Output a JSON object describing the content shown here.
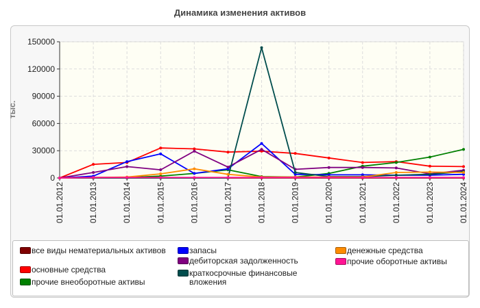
{
  "chart_data": {
    "type": "line",
    "title": "Динамика изменения активов",
    "ylabel": "тыс.",
    "xlabel": "",
    "ylim": [
      0,
      150000
    ],
    "yticks": [
      0,
      30000,
      60000,
      90000,
      120000,
      150000
    ],
    "grid": true,
    "legend_position": "bottom",
    "categories": [
      "01.01.2012",
      "01.01.2013",
      "01.01.2014",
      "01.01.2015",
      "01.01.2016",
      "01.01.2017",
      "01.01.2018",
      "01.01.2019",
      "01.01.2020",
      "01.01.2021",
      "01.01.2022",
      "01.01.2023",
      "01.01.2024"
    ],
    "series": [
      {
        "name": "все виды нематериальных активов",
        "color": "#800000",
        "values": [
          0,
          0,
          0,
          0,
          0,
          0,
          0,
          0,
          0,
          0,
          0,
          0,
          0
        ]
      },
      {
        "name": "основные средства",
        "color": "#ff0000",
        "values": [
          0,
          15000,
          17000,
          33000,
          32000,
          28500,
          29500,
          27000,
          22000,
          17000,
          18000,
          13000,
          12500
        ]
      },
      {
        "name": "прочие внеоборотные активы",
        "color": "#008000",
        "values": [
          0,
          500,
          500,
          2000,
          5000,
          9000,
          1500,
          1000,
          5000,
          13000,
          17000,
          23000,
          31500
        ]
      },
      {
        "name": "запасы",
        "color": "#0000ff",
        "values": [
          0,
          2000,
          18000,
          26500,
          5000,
          10000,
          38000,
          4000,
          3500,
          3500,
          3000,
          3000,
          4000
        ]
      },
      {
        "name": "дебиторская задолженность",
        "color": "#800080",
        "values": [
          0,
          6000,
          12500,
          9000,
          29500,
          12000,
          31500,
          9500,
          11500,
          11500,
          11000,
          4500,
          8500
        ]
      },
      {
        "name": "краткосрочные финансовые вложения",
        "color": "#004d4d",
        "values": [
          0,
          0,
          0,
          0,
          0,
          0,
          143500,
          6000,
          1500,
          1500,
          3000,
          4000,
          7000
        ]
      },
      {
        "name": "денежные средства",
        "color": "#ff8c00",
        "values": [
          0,
          500,
          1000,
          4500,
          10000,
          4000,
          1000,
          1000,
          1000,
          1000,
          6000,
          6500,
          6000
        ]
      },
      {
        "name": "прочие оборотные активы",
        "color": "#ff1493",
        "values": [
          0,
          500,
          500,
          500,
          500,
          500,
          500,
          500,
          500,
          500,
          500,
          500,
          500
        ]
      }
    ]
  },
  "legend": {
    "items": [
      {
        "label": "все виды нематериальных активов",
        "color": "#800000"
      },
      {
        "label": "основные средства",
        "color": "#ff0000"
      },
      {
        "label": "прочие внеоборотные активы",
        "color": "#008000"
      },
      {
        "label": "запасы",
        "color": "#0000ff"
      },
      {
        "label": "дебиторская задолженность",
        "color": "#800080"
      },
      {
        "label": "краткосрочные финансовые вложения",
        "color": "#004d4d"
      },
      {
        "label": "денежные средства",
        "color": "#ff8c00"
      },
      {
        "label": "прочие оборотные активы",
        "color": "#ff1493"
      }
    ]
  }
}
